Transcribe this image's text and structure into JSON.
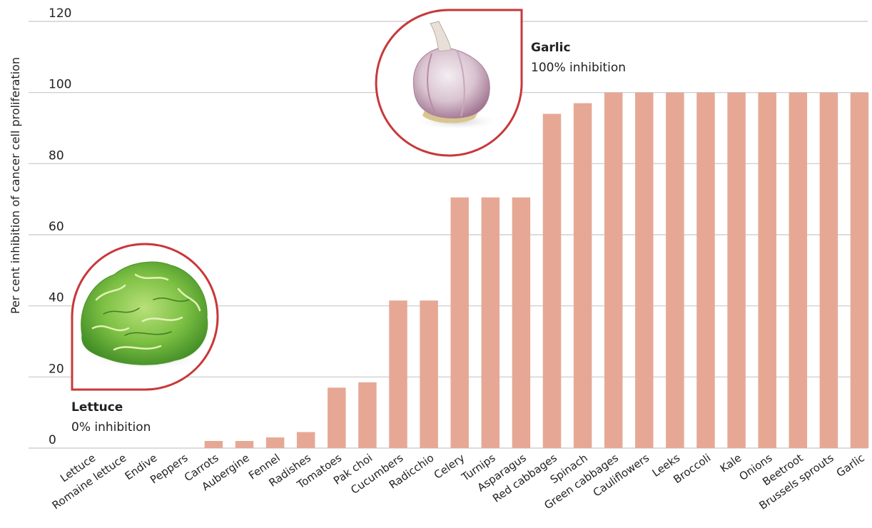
{
  "chart_data": {
    "type": "bar",
    "ylabel": "Per cent  inhibition of cancer cell proliferation",
    "ylim": [
      0,
      120
    ],
    "yticks": [
      0,
      20,
      40,
      60,
      80,
      100,
      120
    ],
    "grid": true,
    "bar_color": "#e6a895",
    "categories": [
      "Lettuce",
      "Romaine lettuce",
      "Endive",
      "Peppers",
      "Carrots",
      "Aubergine",
      "Fennel",
      "Radishes",
      "Tomatoes",
      "Pak choi",
      "Cucumbers",
      "Radicchio",
      "Celery",
      "Turnips",
      "Asparagus",
      "Red cabbages",
      "Spinach",
      "Green cabbages",
      "Cauliflowers",
      "Leeks",
      "Broccoli",
      "Kale",
      "Onions",
      "Beetroot",
      "Brussels sprouts",
      "Garlic"
    ],
    "values": [
      0,
      0,
      0,
      0,
      2,
      2,
      3,
      4.5,
      17,
      18.5,
      41.5,
      41.5,
      70.5,
      70.5,
      70.5,
      94,
      97,
      100,
      100,
      100,
      100,
      100,
      100,
      100,
      100,
      100
    ]
  },
  "callouts": {
    "garlic": {
      "title": "Garlic",
      "subtitle": "100% inhibition",
      "icon": "garlic-bulb-image"
    },
    "lettuce": {
      "title": "Lettuce",
      "subtitle": "0% inhibition",
      "icon": "lettuce-head-image"
    }
  },
  "colors": {
    "callout_border": "#c8383a",
    "lettuce_green": "#6cb43c",
    "garlic_purple": "#a97c97"
  }
}
